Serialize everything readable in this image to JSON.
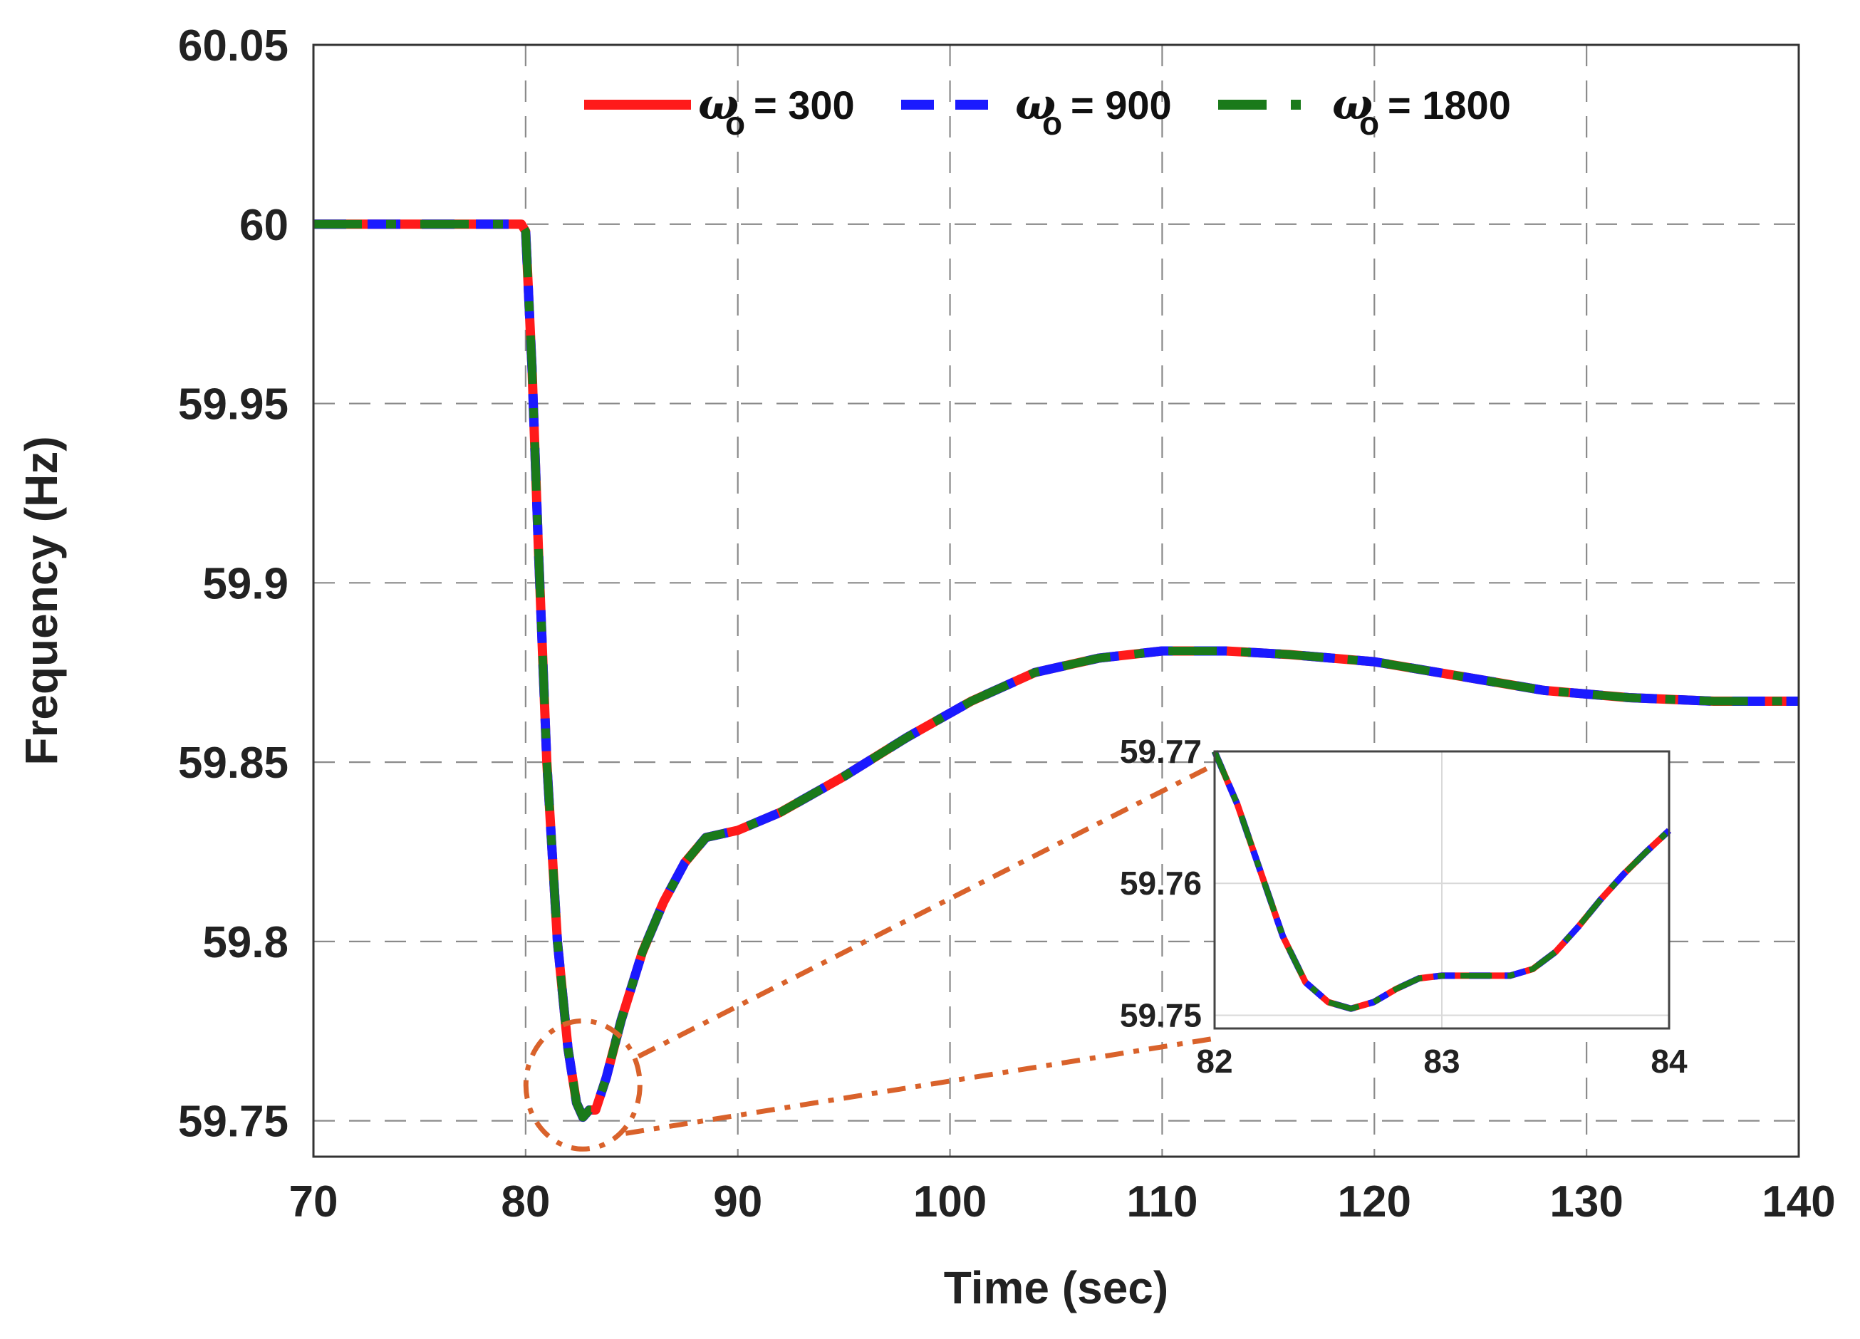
{
  "chart_data": [
    {
      "type": "line",
      "xlabel": "Time (sec)",
      "ylabel": "Frequency (Hz)",
      "xlim": [
        70,
        140
      ],
      "ylim": [
        59.74,
        60.05
      ],
      "xticks": [
        "70",
        "80",
        "90",
        "100",
        "110",
        "120",
        "130",
        "140"
      ],
      "yticks": [
        "59.75",
        "59.8",
        "59.85",
        "59.9",
        "59.95",
        "60",
        "60.05"
      ],
      "grid": true,
      "legend_position": "top",
      "legend": [
        {
          "symbol": "ω",
          "subscript": "o",
          "text": "= 300",
          "color": "#ff1a1a",
          "style": "solid"
        },
        {
          "symbol": "ω",
          "subscript": "o",
          "text": "= 900",
          "color": "#1a1aff",
          "style": "dashed"
        },
        {
          "symbol": "ω",
          "subscript": "o",
          "text": "= 1800",
          "color": "#1a7a1a",
          "style": "dash-dot"
        }
      ],
      "series": [
        {
          "name": "ωo = 300",
          "color": "#ff1a1a",
          "x": [
            70,
            79.8,
            80.0,
            80.3,
            80.6,
            81.0,
            81.5,
            82.0,
            82.4,
            82.7,
            83.0,
            83.3,
            83.8,
            84.5,
            85.5,
            86.5,
            87.5,
            88.5,
            90,
            92,
            95,
            98,
            101,
            104,
            107,
            110,
            113,
            116,
            120,
            124,
            128,
            132,
            136,
            140
          ],
          "y": [
            60.0,
            60.0,
            59.998,
            59.96,
            59.91,
            59.85,
            59.8,
            59.77,
            59.755,
            59.751,
            59.753,
            59.753,
            59.762,
            59.778,
            59.797,
            59.811,
            59.822,
            59.829,
            59.831,
            59.836,
            59.846,
            59.857,
            59.867,
            59.875,
            59.879,
            59.881,
            59.881,
            59.88,
            59.878,
            59.874,
            59.87,
            59.868,
            59.867,
            59.867
          ]
        },
        {
          "name": "ωo = 900",
          "color": "#1a1aff",
          "x": [
            70,
            79.8,
            80.0,
            80.3,
            80.6,
            81.0,
            81.5,
            82.0,
            82.4,
            82.7,
            83.0,
            83.3,
            83.8,
            84.5,
            85.5,
            86.5,
            87.5,
            88.5,
            90,
            92,
            95,
            98,
            101,
            104,
            107,
            110,
            113,
            116,
            120,
            124,
            128,
            132,
            136,
            140
          ],
          "y": [
            60.0,
            60.0,
            59.998,
            59.96,
            59.91,
            59.85,
            59.8,
            59.77,
            59.755,
            59.751,
            59.753,
            59.753,
            59.762,
            59.778,
            59.797,
            59.811,
            59.822,
            59.829,
            59.831,
            59.836,
            59.846,
            59.857,
            59.867,
            59.875,
            59.879,
            59.881,
            59.881,
            59.88,
            59.878,
            59.874,
            59.87,
            59.868,
            59.867,
            59.867
          ]
        },
        {
          "name": "ωo = 1800",
          "color": "#1a7a1a",
          "x": [
            70,
            79.8,
            80.0,
            80.3,
            80.6,
            81.0,
            81.5,
            82.0,
            82.4,
            82.7,
            83.0,
            83.3,
            83.8,
            84.5,
            85.5,
            86.5,
            87.5,
            88.5,
            90,
            92,
            95,
            98,
            101,
            104,
            107,
            110,
            113,
            116,
            120,
            124,
            128,
            132,
            136,
            140
          ],
          "y": [
            60.0,
            60.0,
            59.998,
            59.96,
            59.91,
            59.85,
            59.8,
            59.77,
            59.755,
            59.751,
            59.753,
            59.753,
            59.762,
            59.778,
            59.797,
            59.811,
            59.822,
            59.829,
            59.831,
            59.836,
            59.846,
            59.857,
            59.867,
            59.875,
            59.879,
            59.881,
            59.881,
            59.88,
            59.878,
            59.874,
            59.87,
            59.868,
            59.867,
            59.867
          ]
        }
      ],
      "annotation": {
        "shape": "circle",
        "center": [
          82.7,
          59.76
        ],
        "color": "#d9622b",
        "style": "dash-dot"
      }
    },
    {
      "type": "line",
      "role": "inset",
      "xlim": [
        82,
        84
      ],
      "ylim": [
        59.749,
        59.77
      ],
      "xticks": [
        "82",
        "83",
        "84"
      ],
      "yticks": [
        "59.75",
        "59.76",
        "59.77"
      ],
      "grid": true,
      "series": [
        {
          "color": "#ff1a1a",
          "x": [
            82.0,
            82.1,
            82.2,
            82.3,
            82.4,
            82.5,
            82.6,
            82.7,
            82.8,
            82.9,
            83.0,
            83.1,
            83.2,
            83.3,
            83.4,
            83.5,
            83.6,
            83.7,
            83.8,
            83.9,
            84.0
          ],
          "y": [
            59.77,
            59.766,
            59.761,
            59.756,
            59.7525,
            59.751,
            59.7505,
            59.751,
            59.752,
            59.7528,
            59.753,
            59.753,
            59.753,
            59.753,
            59.7535,
            59.7548,
            59.7567,
            59.7588,
            59.7607,
            59.7624,
            59.764
          ]
        },
        {
          "color": "#1a1aff",
          "x": [
            82.0,
            82.1,
            82.2,
            82.3,
            82.4,
            82.5,
            82.6,
            82.7,
            82.8,
            82.9,
            83.0,
            83.1,
            83.2,
            83.3,
            83.4,
            83.5,
            83.6,
            83.7,
            83.8,
            83.9,
            84.0
          ],
          "y": [
            59.77,
            59.766,
            59.761,
            59.756,
            59.7525,
            59.751,
            59.7505,
            59.751,
            59.752,
            59.7528,
            59.753,
            59.753,
            59.753,
            59.753,
            59.7535,
            59.7548,
            59.7567,
            59.7588,
            59.7607,
            59.7624,
            59.764
          ]
        },
        {
          "color": "#1a7a1a",
          "x": [
            82.0,
            82.1,
            82.2,
            82.3,
            82.4,
            82.5,
            82.6,
            82.7,
            82.8,
            82.9,
            83.0,
            83.1,
            83.2,
            83.3,
            83.4,
            83.5,
            83.6,
            83.7,
            83.8,
            83.9,
            84.0
          ],
          "y": [
            59.77,
            59.766,
            59.761,
            59.756,
            59.7525,
            59.751,
            59.7505,
            59.751,
            59.752,
            59.7528,
            59.753,
            59.753,
            59.753,
            59.753,
            59.7535,
            59.7548,
            59.7567,
            59.7588,
            59.7607,
            59.7624,
            59.764
          ]
        }
      ]
    }
  ]
}
